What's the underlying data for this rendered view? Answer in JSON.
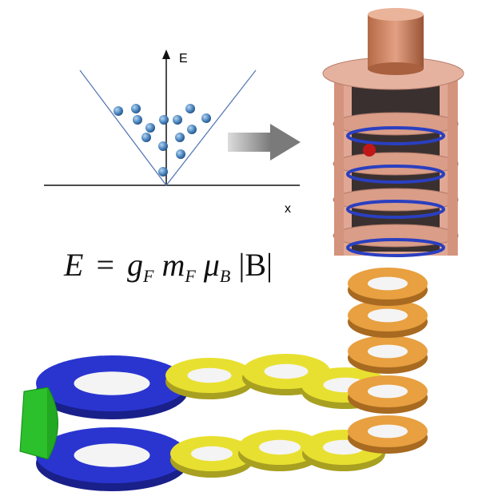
{
  "plot": {
    "y_label": "E",
    "x_label": "x"
  },
  "equation": {
    "tokens": [
      "E",
      "=",
      "g",
      "F",
      "m",
      "F",
      "μ",
      "B",
      "|B|"
    ]
  }
}
